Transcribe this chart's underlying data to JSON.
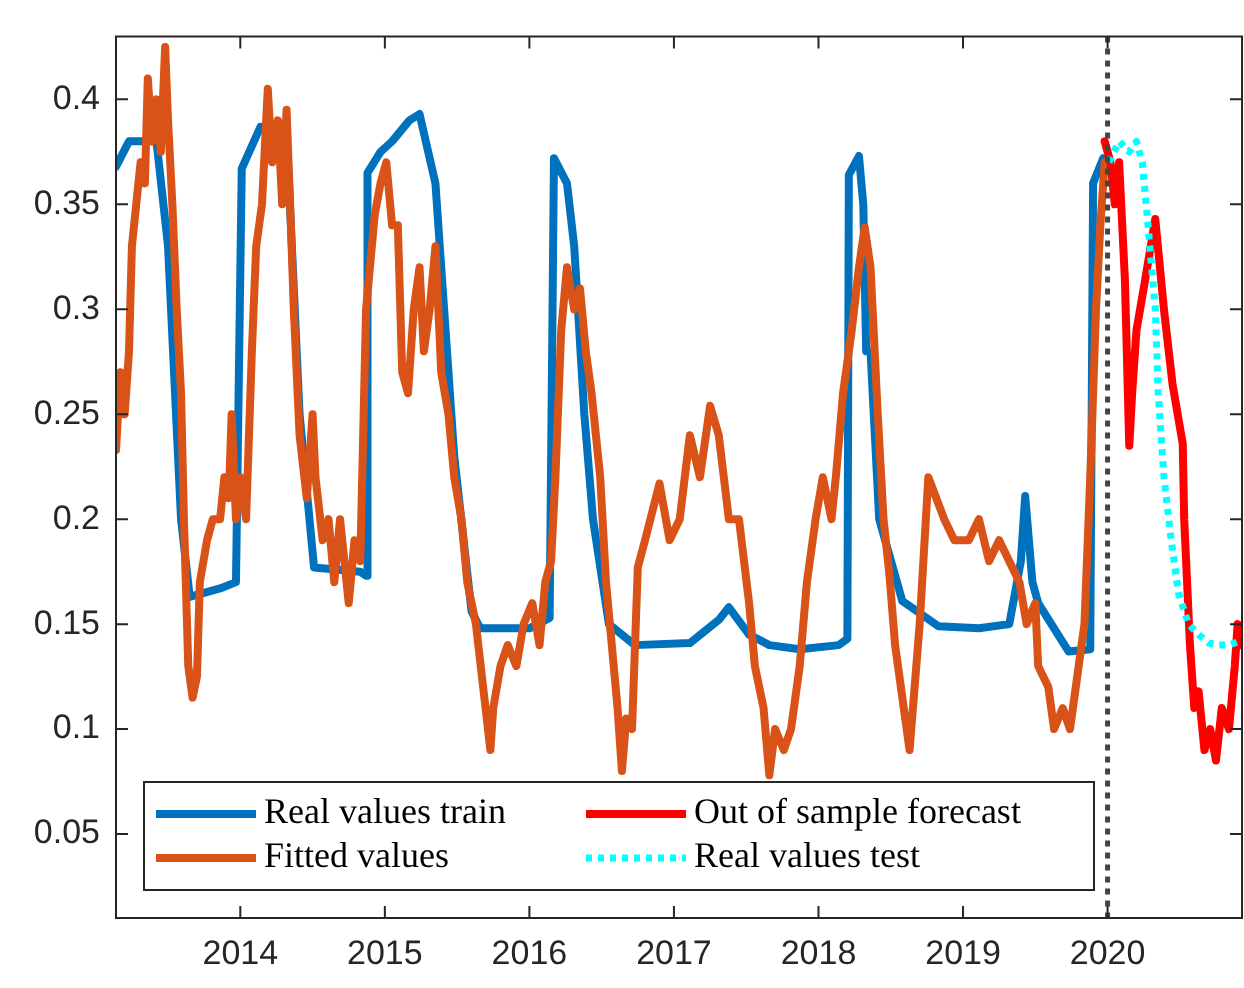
{
  "chart_data": {
    "type": "line",
    "xlim": [
      2013.14,
      2020.93
    ],
    "xticks": [
      2014,
      2015,
      2016,
      2017,
      2018,
      2019,
      2020
    ],
    "ylim": [
      0.01,
      0.43
    ],
    "yticks": [
      0.05,
      0.1,
      0.15,
      0.2,
      0.25,
      0.3,
      0.35,
      0.4
    ],
    "legend": "bottom left",
    "ref_lines": [
      {
        "axis": "x",
        "value": 2020,
        "color": "#444444",
        "line_style": "dotted"
      }
    ],
    "series": [
      {
        "name": "Real values train",
        "color": "#0072bd",
        "line_style": "solid",
        "x": [
          2013.14,
          2013.23,
          2013.42,
          2013.5,
          2013.59,
          2013.65,
          2013.86,
          2013.97,
          2014.01,
          2014.14,
          2014.32,
          2014.41,
          2014.51,
          2014.83,
          2014.87,
          2014.88,
          2014.97,
          2015.05,
          2015.17,
          2015.24,
          2015.35,
          2015.48,
          2015.6,
          2015.66,
          2016.0,
          2016.14,
          2016.17,
          2016.26,
          2016.31,
          2016.38,
          2016.44,
          2016.55,
          2016.73,
          2017.11,
          2017.31,
          2017.38,
          2017.52,
          2017.66,
          2017.87,
          2018.14,
          2018.2,
          2018.21,
          2018.28,
          2018.31,
          2018.33,
          2018.36,
          2018.42,
          2018.58,
          2018.83,
          2019.11,
          2019.32,
          2019.4,
          2019.43,
          2019.48,
          2019.52,
          2019.73,
          2019.88,
          2019.9,
          2019.97
        ],
        "values": [
          0.368,
          0.38,
          0.38,
          0.33,
          0.2,
          0.163,
          0.167,
          0.17,
          0.367,
          0.387,
          0.385,
          0.25,
          0.177,
          0.175,
          0.173,
          0.365,
          0.375,
          0.38,
          0.39,
          0.393,
          0.36,
          0.23,
          0.156,
          0.148,
          0.148,
          0.153,
          0.372,
          0.36,
          0.33,
          0.25,
          0.2,
          0.15,
          0.14,
          0.141,
          0.152,
          0.158,
          0.145,
          0.14,
          0.138,
          0.14,
          0.143,
          0.364,
          0.373,
          0.35,
          0.28,
          0.28,
          0.2,
          0.161,
          0.149,
          0.148,
          0.15,
          0.18,
          0.211,
          0.17,
          0.16,
          0.137,
          0.138,
          0.36,
          0.372
        ]
      },
      {
        "name": "Fitted values",
        "color": "#d95319",
        "line_style": "solid",
        "x": [
          2013.14,
          2013.17,
          2013.2,
          2013.23,
          2013.25,
          2013.31,
          2013.34,
          2013.36,
          2013.39,
          2013.42,
          2013.45,
          2013.48,
          2013.5,
          2013.53,
          2013.56,
          2013.59,
          2013.61,
          2013.64,
          2013.67,
          2013.7,
          2013.72,
          2013.77,
          2013.81,
          2013.86,
          2013.89,
          2013.92,
          2013.94,
          2013.97,
          2014.0,
          2014.04,
          2014.08,
          2014.11,
          2014.15,
          2014.19,
          2014.22,
          2014.26,
          2014.29,
          2014.32,
          2014.35,
          2014.37,
          2014.41,
          2014.46,
          2014.5,
          2014.52,
          2014.57,
          2014.61,
          2014.65,
          2014.69,
          2014.75,
          2014.79,
          2014.83,
          2014.87,
          2014.93,
          2014.97,
          2015.01,
          2015.05,
          2015.09,
          2015.12,
          2015.16,
          2015.2,
          2015.24,
          2015.27,
          2015.31,
          2015.35,
          2015.39,
          2015.44,
          2015.48,
          2015.53,
          2015.57,
          2015.63,
          2015.68,
          2015.73,
          2015.75,
          2015.8,
          2015.85,
          2015.91,
          2015.96,
          2016.02,
          2016.07,
          2016.11,
          2016.15,
          2016.18,
          2016.22,
          2016.26,
          2016.31,
          2016.35,
          2016.39,
          2016.43,
          2016.49,
          2016.53,
          2016.57,
          2016.61,
          2016.64,
          2016.67,
          2016.71,
          2016.75,
          2016.8,
          2016.9,
          2016.97,
          2017.04,
          2017.11,
          2017.18,
          2017.25,
          2017.31,
          2017.38,
          2017.45,
          2017.52,
          2017.56,
          2017.62,
          2017.66,
          2017.7,
          2017.76,
          2017.81,
          2017.87,
          2017.92,
          2017.98,
          2018.03,
          2018.09,
          2018.12,
          2018.17,
          2018.23,
          2018.28,
          2018.32,
          2018.36,
          2018.41,
          2018.45,
          2018.49,
          2018.53,
          2018.63,
          2018.7,
          2018.76,
          2018.87,
          2018.94,
          2019.04,
          2019.11,
          2019.18,
          2019.25,
          2019.32,
          2019.39,
          2019.44,
          2019.5,
          2019.52,
          2019.59,
          2019.63,
          2019.69,
          2019.74,
          2019.8,
          2019.84,
          2019.88,
          2019.92,
          2019.95,
          2019.98
        ],
        "values": [
          0.233,
          0.27,
          0.25,
          0.28,
          0.33,
          0.37,
          0.36,
          0.41,
          0.38,
          0.4,
          0.375,
          0.425,
          0.39,
          0.35,
          0.3,
          0.26,
          0.2,
          0.13,
          0.115,
          0.125,
          0.17,
          0.19,
          0.2,
          0.2,
          0.22,
          0.21,
          0.25,
          0.2,
          0.22,
          0.2,
          0.28,
          0.33,
          0.35,
          0.405,
          0.37,
          0.39,
          0.35,
          0.395,
          0.34,
          0.3,
          0.24,
          0.21,
          0.25,
          0.22,
          0.19,
          0.2,
          0.17,
          0.2,
          0.16,
          0.19,
          0.18,
          0.3,
          0.345,
          0.36,
          0.37,
          0.34,
          0.34,
          0.27,
          0.26,
          0.3,
          0.32,
          0.28,
          0.3,
          0.33,
          0.27,
          0.25,
          0.22,
          0.2,
          0.17,
          0.15,
          0.12,
          0.09,
          0.11,
          0.13,
          0.14,
          0.13,
          0.15,
          0.16,
          0.14,
          0.17,
          0.18,
          0.22,
          0.29,
          0.32,
          0.3,
          0.31,
          0.28,
          0.26,
          0.22,
          0.17,
          0.14,
          0.11,
          0.08,
          0.105,
          0.1,
          0.177,
          0.19,
          0.217,
          0.19,
          0.2,
          0.24,
          0.22,
          0.254,
          0.24,
          0.2,
          0.2,
          0.16,
          0.13,
          0.11,
          0.078,
          0.1,
          0.09,
          0.1,
          0.13,
          0.17,
          0.2,
          0.22,
          0.2,
          0.22,
          0.26,
          0.29,
          0.32,
          0.339,
          0.32,
          0.25,
          0.2,
          0.174,
          0.14,
          0.09,
          0.15,
          0.22,
          0.2,
          0.19,
          0.19,
          0.2,
          0.18,
          0.19,
          0.18,
          0.17,
          0.15,
          0.16,
          0.13,
          0.12,
          0.1,
          0.11,
          0.1,
          0.13,
          0.15,
          0.22,
          0.3,
          0.34,
          0.37
        ]
      },
      {
        "name": "Out of sample forecast",
        "color": "#ff0000",
        "line_style": "solid",
        "x": [
          2019.98,
          2020.02,
          2020.05,
          2020.08,
          2020.12,
          2020.15,
          2020.17,
          2020.2,
          2020.26,
          2020.33,
          2020.39,
          2020.45,
          2020.52,
          2020.53,
          2020.57,
          2020.6,
          2020.63,
          2020.67,
          2020.71,
          2020.75,
          2020.79,
          2020.84,
          2020.88,
          2020.9,
          2020.92
        ],
        "values": [
          0.38,
          0.37,
          0.35,
          0.37,
          0.314,
          0.235,
          0.26,
          0.29,
          0.314,
          0.343,
          0.3,
          0.264,
          0.236,
          0.2,
          0.14,
          0.11,
          0.118,
          0.09,
          0.1,
          0.085,
          0.11,
          0.1,
          0.13,
          0.15,
          0.14
        ]
      },
      {
        "name": "Real values test",
        "color": "#00ffff",
        "line_style": "dotted",
        "x": [
          2020.01,
          2020.08,
          2020.15,
          2020.2,
          2020.24,
          2020.28,
          2020.33,
          2020.35,
          2020.39,
          2020.44,
          2020.49,
          2020.56,
          2020.63,
          2020.7,
          2020.77,
          2020.84,
          2020.92
        ],
        "values": [
          0.37,
          0.38,
          0.375,
          0.38,
          0.37,
          0.34,
          0.3,
          0.26,
          0.22,
          0.19,
          0.165,
          0.15,
          0.145,
          0.141,
          0.14,
          0.14,
          0.142
        ]
      }
    ]
  }
}
